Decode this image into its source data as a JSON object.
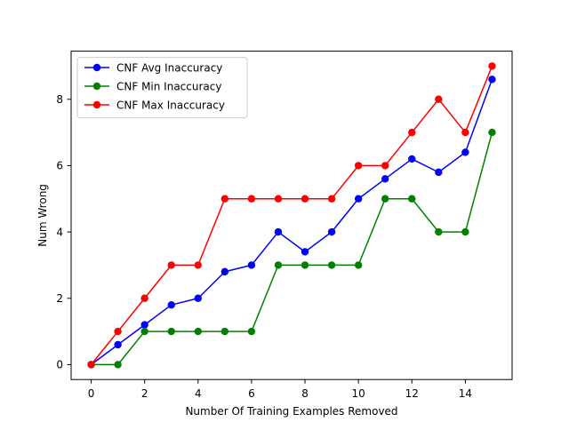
{
  "chart_data": {
    "type": "line",
    "title": "",
    "xlabel": "Number Of Training Examples Removed",
    "ylabel": "Num Wrong",
    "x": [
      0,
      1,
      2,
      3,
      4,
      5,
      6,
      7,
      8,
      9,
      10,
      11,
      12,
      13,
      14,
      15
    ],
    "xlim": [
      -0.75,
      15.75
    ],
    "ylim": [
      -0.45,
      9.45
    ],
    "xticks": [
      0,
      2,
      4,
      6,
      8,
      10,
      12,
      14
    ],
    "yticks": [
      0,
      2,
      4,
      6,
      8
    ],
    "grid": false,
    "legend_position": "top-left",
    "series": [
      {
        "name": "CNF Avg Inaccuracy",
        "color": "#0000ff",
        "marker": "circle",
        "values": [
          0,
          0.6,
          1.2,
          1.8,
          2.0,
          2.8,
          3.0,
          4.0,
          3.4,
          4.0,
          5.0,
          5.6,
          6.2,
          5.8,
          6.4,
          8.6
        ]
      },
      {
        "name": "CNF Min Inaccuracy",
        "color": "#008000",
        "marker": "circle",
        "values": [
          0,
          0,
          1,
          1,
          1,
          1,
          1,
          3,
          3,
          3,
          3,
          5,
          5,
          4,
          4,
          7
        ]
      },
      {
        "name": "CNF Max Inaccuracy",
        "color": "#ff0000",
        "marker": "circle",
        "values": [
          0,
          1,
          2,
          3,
          3,
          5,
          5,
          5,
          5,
          5,
          6,
          6,
          7,
          8,
          7,
          9
        ]
      }
    ]
  }
}
